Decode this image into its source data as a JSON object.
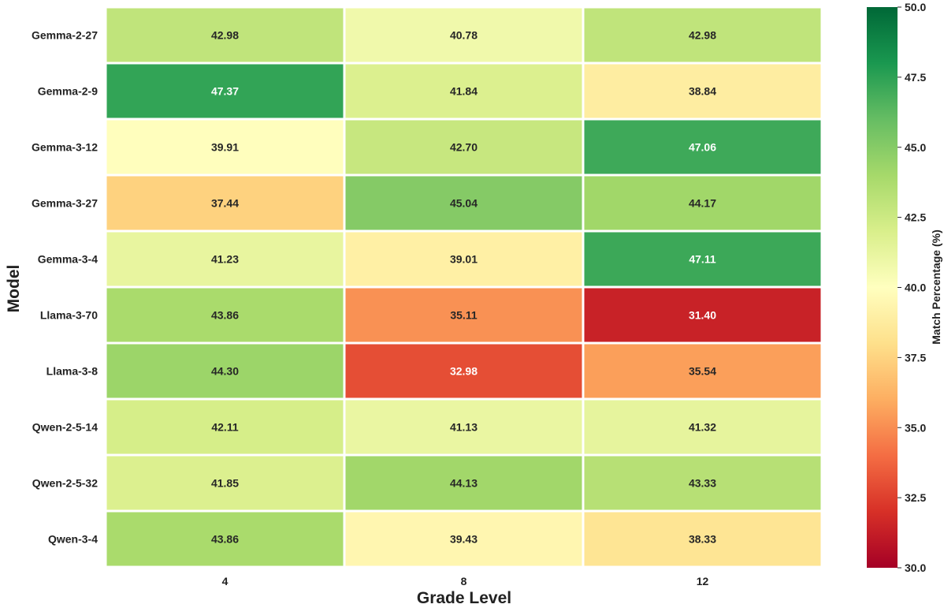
{
  "chart_data": {
    "type": "heatmap",
    "xlabel": "Grade Level",
    "ylabel": "Model",
    "x_categories": [
      "4",
      "8",
      "12"
    ],
    "y_categories": [
      "Gemma-2-27",
      "Gemma-2-9",
      "Gemma-3-12",
      "Gemma-3-27",
      "Gemma-3-4",
      "Llama-3-70",
      "Llama-3-8",
      "Qwen-2-5-14",
      "Qwen-2-5-32",
      "Qwen-3-4"
    ],
    "values": [
      [
        42.98,
        40.78,
        42.98
      ],
      [
        47.37,
        41.84,
        38.84
      ],
      [
        39.91,
        42.7,
        47.06
      ],
      [
        37.44,
        45.04,
        44.17
      ],
      [
        41.23,
        39.01,
        47.11
      ],
      [
        43.86,
        35.11,
        31.4
      ],
      [
        44.3,
        32.98,
        35.54
      ],
      [
        42.11,
        41.13,
        41.32
      ],
      [
        41.85,
        44.13,
        43.33
      ],
      [
        43.86,
        39.43,
        38.33
      ]
    ],
    "value_labels": [
      [
        "42.98",
        "40.78",
        "42.98"
      ],
      [
        "47.37",
        "41.84",
        "38.84"
      ],
      [
        "39.91",
        "42.70",
        "47.06"
      ],
      [
        "37.44",
        "45.04",
        "44.17"
      ],
      [
        "41.23",
        "39.01",
        "47.11"
      ],
      [
        "43.86",
        "35.11",
        "31.40"
      ],
      [
        "44.30",
        "32.98",
        "35.54"
      ],
      [
        "42.11",
        "41.13",
        "41.32"
      ],
      [
        "41.85",
        "44.13",
        "43.33"
      ],
      [
        "43.86",
        "39.43",
        "38.33"
      ]
    ],
    "colormap": "RdYlGn",
    "vmin": 30.0,
    "vmax": 50.0,
    "colorbar": {
      "label": "Match Percentage (%)",
      "ticks": [
        30.0,
        32.5,
        35.0,
        37.5,
        40.0,
        42.5,
        45.0,
        47.5,
        50.0
      ],
      "tick_labels": [
        "30.0",
        "32.5",
        "35.0",
        "37.5",
        "40.0",
        "42.5",
        "45.0",
        "47.5",
        "50.0"
      ]
    },
    "grid": false
  }
}
